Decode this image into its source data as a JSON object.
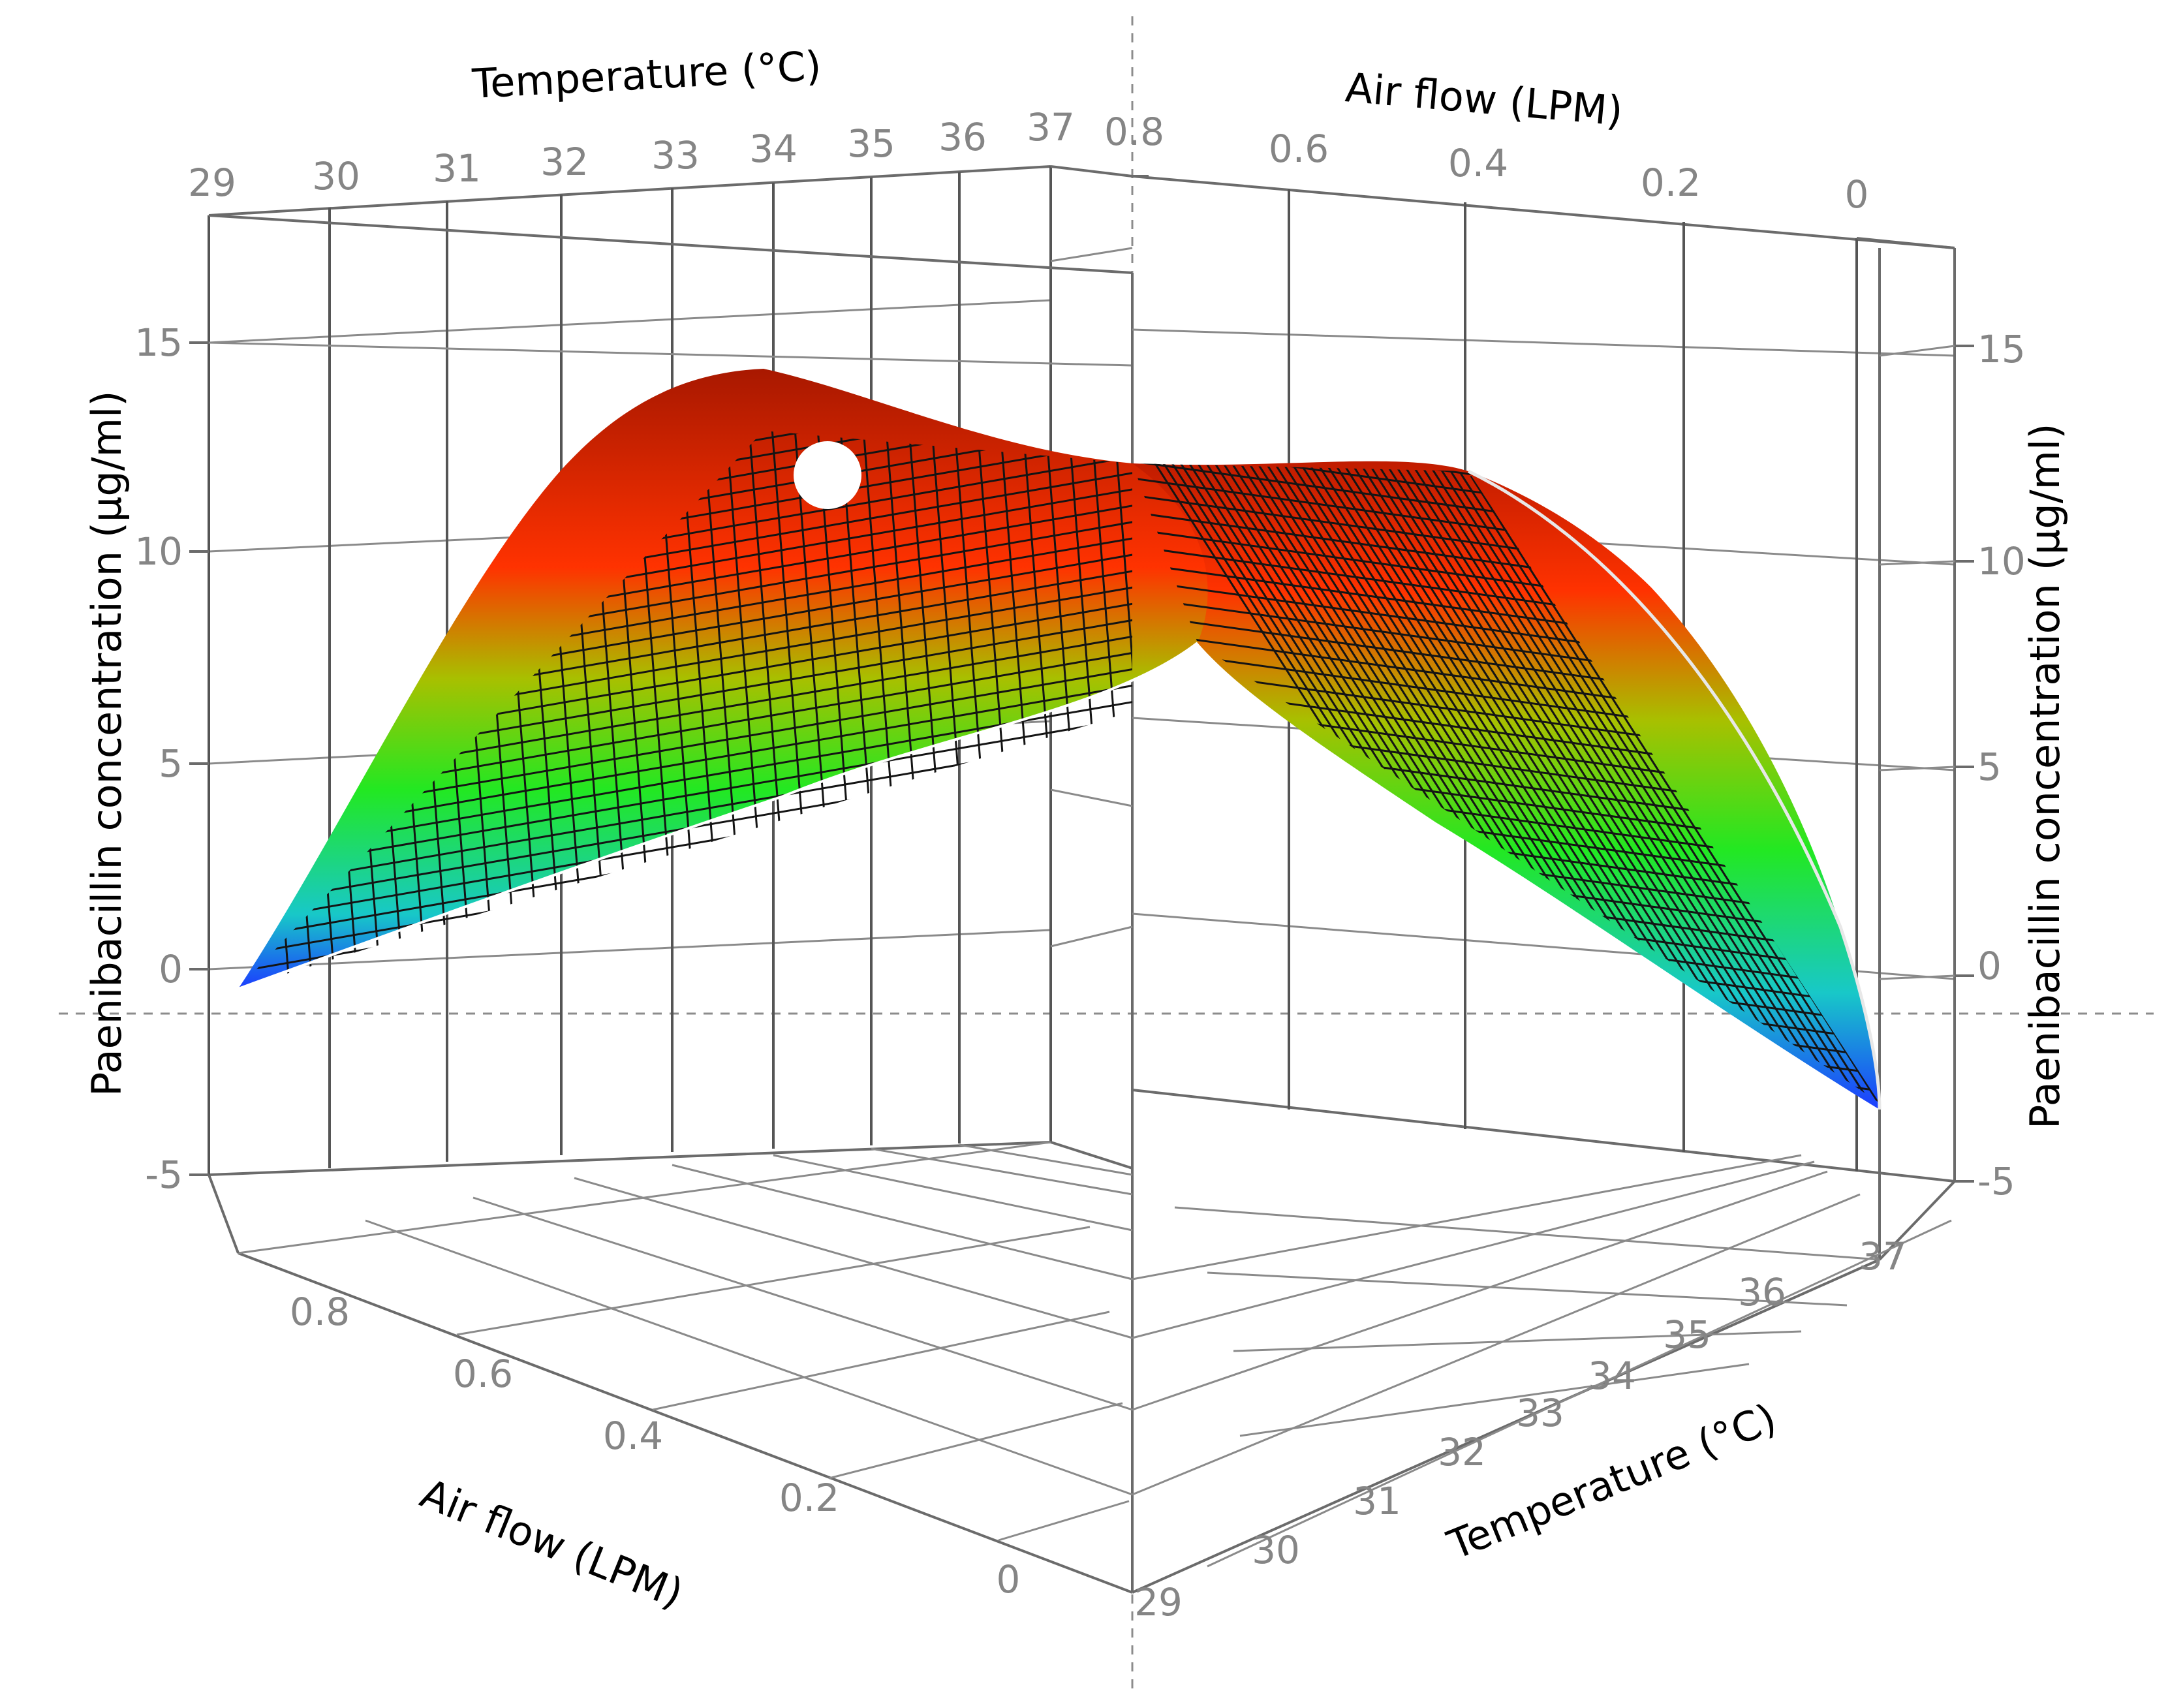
{
  "chart_data": {
    "type": "surface3d",
    "model": "quadratic response surface",
    "x_axis": {
      "label": "Temperature (°C)",
      "ticks": [
        "29",
        "30",
        "31",
        "32",
        "33",
        "34",
        "35",
        "36",
        "37"
      ],
      "range": [
        29,
        37
      ]
    },
    "y_axis": {
      "label": "Air  flow (LPM)",
      "ticks": [
        "0",
        "0.2",
        "0.4",
        "0.6",
        "0.8"
      ],
      "range": [
        0,
        0.8
      ]
    },
    "z_axis": {
      "label": "Paenibacillin concentration (µg/ml)",
      "ticks": [
        "-5",
        "0",
        "5",
        "10",
        "15"
      ],
      "range": [
        -5,
        15
      ]
    },
    "grid": true,
    "colormap": [
      "#1c3cff",
      "#18c8c8",
      "#22e822",
      "#a8c000",
      "#ff3200",
      "#a81800"
    ],
    "optimum": {
      "temperature": 33.5,
      "air_flow": 0.64,
      "concentration": 13.0
    },
    "surface_points": [
      {
        "temperature": 29,
        "air_flow": 0,
        "concentration": 0.8
      },
      {
        "temperature": 29,
        "air_flow": 0.8,
        "concentration": 0.2
      },
      {
        "temperature": 33,
        "air_flow": 0.8,
        "concentration": 13.0
      },
      {
        "temperature": 37,
        "air_flow": 0.8,
        "concentration": 8.8
      },
      {
        "temperature": 37,
        "air_flow": 0,
        "concentration": -4.0
      },
      {
        "temperature": 33,
        "air_flow": 0,
        "concentration": 11.0
      }
    ]
  },
  "left_labels": {
    "temperature_top": "Temperature (°C)",
    "temp_ticks_top": [
      "29",
      "30",
      "31",
      "32",
      "33",
      "34",
      "35",
      "36",
      "37"
    ],
    "airflow_bottom": "Air  flow (LPM)",
    "airflow_ticks_bottom": [
      "0.8",
      "0.6",
      "0.4",
      "0.2",
      "0"
    ],
    "z_title": "Paenibacillin concentration (µg/ml)",
    "z_ticks": [
      "15",
      "10",
      "5",
      "0",
      "-5"
    ]
  },
  "right_labels": {
    "airflow_top": "Air  flow (LPM)",
    "airflow_ticks_top": [
      "0.8",
      "0.6",
      "0.4",
      "0.2",
      "0"
    ],
    "temperature_bottom": "Temperature (°C)",
    "temp_ticks_bottom": [
      "29",
      "30",
      "31",
      "32",
      "33",
      "34",
      "35",
      "36",
      "37"
    ],
    "z_title": "Paenibacillin concentration (µg/ml)",
    "z_ticks": [
      "15",
      "10",
      "5",
      "0",
      "-5"
    ]
  }
}
